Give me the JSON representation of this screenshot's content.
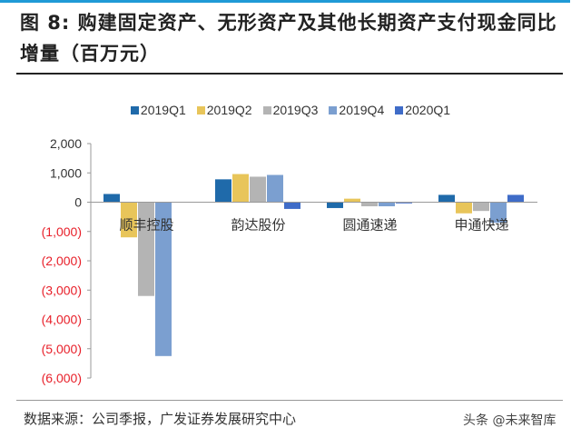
{
  "title": "图 8: 购建固定资产、无形资产及其他长期资产支付现金同比增量（百万元）",
  "source": "数据来源：公司季报，广发证券发展研究中心",
  "watermark": "头条 @未来智库",
  "chart_data": {
    "type": "bar",
    "title": "",
    "xlabel": "",
    "ylabel": "",
    "categories": [
      "顺丰控股",
      "韵达股份",
      "圆通速递",
      "申通快递"
    ],
    "ylim": [
      -6000,
      2000
    ],
    "yticks": [
      2000,
      1000,
      0,
      -1000,
      -2000,
      -3000,
      -4000,
      -5000,
      -6000
    ],
    "ytick_labels": [
      "2,000",
      "1,000",
      "0",
      "(1,000)",
      "(2,000)",
      "(3,000)",
      "(4,000)",
      "(5,000)",
      "(6,000)"
    ],
    "negative_tick_color": "#e8202a",
    "legend": "top",
    "grid": false,
    "series": [
      {
        "name": "2019Q1",
        "color": "#1f6aaa",
        "values": [
          280,
          780,
          -200,
          250
        ]
      },
      {
        "name": "2019Q2",
        "color": "#e8c55a",
        "values": [
          -1200,
          960,
          120,
          -380
        ]
      },
      {
        "name": "2019Q3",
        "color": "#b4b4b4",
        "values": [
          -3200,
          870,
          -140,
          -300
        ]
      },
      {
        "name": "2019Q4",
        "color": "#7b9fd0",
        "values": [
          -5250,
          930,
          -140,
          -700
        ]
      },
      {
        "name": "2020Q1",
        "color": "#3f6cc8",
        "values": [
          0,
          -230,
          -40,
          250
        ]
      }
    ]
  }
}
